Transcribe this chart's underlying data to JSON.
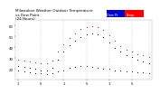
{
  "title": "Milwaukee Weather Outdoor Temperature\nvs Dew Point\n(24 Hours)",
  "bg_color": "#ffffff",
  "grid_color": "#bbbbbb",
  "temp_color": "#ff0000",
  "dew_color": "#0000cc",
  "feels_color": "#000000",
  "legend_temp_color": "#ff0000",
  "legend_dew_color": "#0000cc",
  "temp_vals": [
    28,
    27,
    26,
    25,
    24,
    24,
    27,
    35,
    42,
    48,
    52,
    56,
    58,
    59,
    58,
    55,
    50,
    45,
    40,
    37,
    35,
    33,
    32,
    30
  ],
  "dew_vals": [
    18,
    17,
    16,
    15,
    15,
    14,
    15,
    17,
    18,
    20,
    21,
    22,
    22,
    21,
    20,
    19,
    19,
    18,
    18,
    17,
    17,
    16,
    16,
    15
  ],
  "feels_vals": [
    22,
    21,
    20,
    19,
    18,
    18,
    20,
    28,
    35,
    41,
    45,
    49,
    51,
    52,
    51,
    49,
    44,
    39,
    35,
    32,
    30,
    28,
    26,
    24
  ],
  "ylim_min": 10,
  "ylim_max": 65,
  "yticks": [
    20,
    30,
    40,
    50,
    60
  ],
  "vgrid_positions": [
    0,
    4,
    8,
    12,
    16,
    20,
    23
  ],
  "title_fontsize": 3.0,
  "tick_fontsize": 2.8,
  "legend_label_temp": "Temp",
  "legend_label_dew": "Dew Pt"
}
